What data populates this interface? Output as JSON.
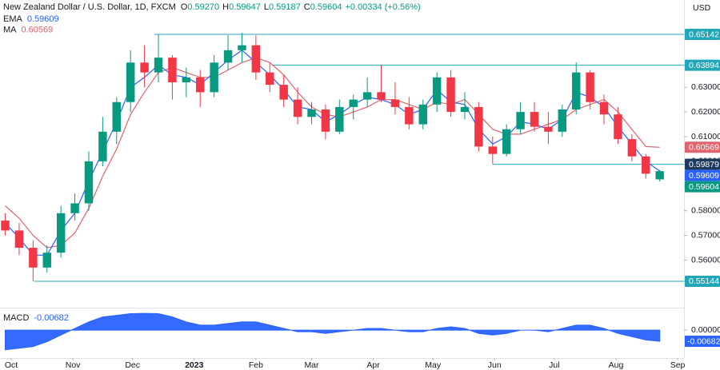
{
  "chart_data": {
    "type": "candlestick",
    "title": "New Zealand Dollar / U.S. Dollar, 1D, FXCM",
    "legend_ohlc": [
      {
        "name": "O",
        "value": 0.5927,
        "label": "0.59270"
      },
      {
        "name": "H",
        "value": 0.59647,
        "label": "0.59647"
      },
      {
        "name": "L",
        "value": 0.59187,
        "label": "0.59187"
      },
      {
        "name": "C",
        "value": 0.59604,
        "label": "0.59604"
      }
    ],
    "change": "+0.00334 (+0.56%)",
    "currency": "USD",
    "up_color": "#089981",
    "down_color": "#f23645",
    "x": [
      -3,
      4,
      11,
      18,
      25,
      32,
      39,
      46,
      53,
      60,
      67,
      74,
      81,
      88,
      95,
      102,
      109,
      116,
      123,
      130,
      137,
      144,
      151,
      158,
      165,
      172,
      179,
      186,
      193,
      200,
      207,
      214,
      221,
      228,
      235,
      242,
      249,
      256,
      263,
      270,
      277,
      284,
      291,
      298,
      305,
      312,
      319,
      326
    ],
    "open": [
      0.576,
      0.572,
      0.565,
      0.557,
      0.563,
      0.579,
      0.583,
      0.6,
      0.612,
      0.624,
      0.64,
      0.636,
      0.642,
      0.632,
      0.634,
      0.628,
      0.64,
      0.645,
      0.647,
      0.636,
      0.631,
      0.625,
      0.618,
      0.621,
      0.612,
      0.622,
      0.625,
      0.628,
      0.625,
      0.622,
      0.615,
      0.623,
      0.634,
      0.62,
      0.622,
      0.606,
      0.603,
      0.613,
      0.62,
      0.614,
      0.612,
      0.621,
      0.636,
      0.624,
      0.619,
      0.609,
      0.602,
      0.5927
    ],
    "high": [
      0.579,
      0.575,
      0.568,
      0.566,
      0.582,
      0.587,
      0.604,
      0.618,
      0.626,
      0.645,
      0.647,
      0.65142,
      0.643,
      0.638,
      0.637,
      0.643,
      0.651,
      0.652,
      0.651,
      0.64,
      0.635,
      0.63,
      0.624,
      0.623,
      0.625,
      0.627,
      0.634,
      0.63894,
      0.632,
      0.626,
      0.625,
      0.636,
      0.637,
      0.628,
      0.624,
      0.61,
      0.615,
      0.624,
      0.624,
      0.62,
      0.623,
      0.64,
      0.637,
      0.627,
      0.622,
      0.611,
      0.603,
      0.59647
    ],
    "low": [
      0.57,
      0.562,
      0.55144,
      0.555,
      0.561,
      0.576,
      0.58,
      0.598,
      0.607,
      0.62,
      0.63,
      0.632,
      0.625,
      0.626,
      0.622,
      0.626,
      0.637,
      0.64,
      0.633,
      0.628,
      0.622,
      0.615,
      0.615,
      0.609,
      0.611,
      0.617,
      0.622,
      0.624,
      0.619,
      0.613,
      0.613,
      0.62,
      0.618,
      0.617,
      0.604,
      0.599,
      0.602,
      0.611,
      0.612,
      0.607,
      0.61,
      0.619,
      0.621,
      0.615,
      0.607,
      0.6,
      0.593,
      0.59187
    ],
    "close": [
      0.572,
      0.565,
      0.557,
      0.563,
      0.579,
      0.583,
      0.6,
      0.612,
      0.624,
      0.64,
      0.636,
      0.642,
      0.632,
      0.634,
      0.628,
      0.64,
      0.645,
      0.647,
      0.636,
      0.631,
      0.625,
      0.618,
      0.621,
      0.612,
      0.622,
      0.625,
      0.628,
      0.625,
      0.622,
      0.615,
      0.623,
      0.634,
      0.62,
      0.622,
      0.606,
      0.603,
      0.613,
      0.62,
      0.614,
      0.612,
      0.621,
      0.636,
      0.624,
      0.619,
      0.609,
      0.602,
      0.595,
      0.59604
    ],
    "series": [
      {
        "name": "EMA",
        "color": "#2962ff",
        "values": [
          0.575,
          0.569,
          0.562,
          0.562,
          0.572,
          0.579,
          0.592,
          0.604,
          0.616,
          0.63,
          0.634,
          0.639,
          0.635,
          0.634,
          0.631,
          0.636,
          0.641,
          0.645,
          0.64,
          0.635,
          0.629,
          0.622,
          0.621,
          0.616,
          0.619,
          0.623,
          0.626,
          0.625,
          0.623,
          0.619,
          0.621,
          0.629,
          0.624,
          0.623,
          0.613,
          0.607,
          0.61,
          0.616,
          0.615,
          0.613,
          0.617,
          0.628,
          0.626,
          0.622,
          0.614,
          0.607,
          0.6,
          0.59609
        ]
      },
      {
        "name": "MA",
        "color": "#e0656c",
        "values": [
          0.582,
          0.577,
          0.57,
          0.565,
          0.566,
          0.571,
          0.581,
          0.594,
          0.605,
          0.619,
          0.628,
          0.636,
          0.638,
          0.636,
          0.634,
          0.634,
          0.637,
          0.64,
          0.642,
          0.64,
          0.635,
          0.628,
          0.622,
          0.619,
          0.618,
          0.62,
          0.622,
          0.625,
          0.625,
          0.623,
          0.621,
          0.624,
          0.623,
          0.625,
          0.619,
          0.613,
          0.611,
          0.611,
          0.613,
          0.615,
          0.617,
          0.621,
          0.623,
          0.625,
          0.62,
          0.613,
          0.606,
          0.60569
        ]
      }
    ],
    "levels": [
      {
        "value": 0.65142,
        "from": 72,
        "color": "#22a7b8"
      },
      {
        "value": 0.63894,
        "from": 131,
        "color": "#22a7b8"
      },
      {
        "value": 0.59879,
        "from": 242,
        "color": "#22a7b8",
        "label_color": "#1e3a5f"
      },
      {
        "value": 0.55144,
        "from": 11.6,
        "color": "#22a7b8"
      }
    ],
    "xlim": [
      -5.63,
      338.2
    ],
    "xticks": [
      {
        "value": 0,
        "label": "Oct"
      },
      {
        "value": 31,
        "label": "Nov"
      },
      {
        "value": 61,
        "label": "Dec"
      },
      {
        "value": 92,
        "label": "2023"
      },
      {
        "value": 123,
        "label": "Feb"
      },
      {
        "value": 151,
        "label": "Mar"
      },
      {
        "value": 182,
        "label": "Apr"
      },
      {
        "value": 212,
        "label": "May"
      },
      {
        "value": 243,
        "label": "Jun"
      },
      {
        "value": 273,
        "label": "Jul"
      },
      {
        "value": 304,
        "label": "Aug"
      },
      {
        "value": 335,
        "label": "Sep"
      }
    ],
    "ylim": [
      0.54074,
      0.66534
    ],
    "yticks": [
      {
        "value": 0.56,
        "label": "0.56000"
      },
      {
        "value": 0.57,
        "label": "0.57000"
      },
      {
        "value": 0.58,
        "label": "0.58000"
      },
      {
        "value": 0.59,
        "label": "0.59000"
      },
      {
        "value": 0.6,
        "label": "0.60000"
      },
      {
        "value": 0.61,
        "label": "0.61000"
      },
      {
        "value": 0.62,
        "label": "0.62000"
      },
      {
        "value": 0.63,
        "label": "0.63000"
      }
    ],
    "grid": false,
    "macd": {
      "name": "MACD",
      "color": "#2962ff",
      "values": [
        -0.012,
        -0.011,
        -0.01,
        -0.007,
        -0.003,
        0.001,
        0.005,
        0.008,
        0.009,
        0.01,
        0.0102,
        0.01,
        0.008,
        0.005,
        0.003,
        0.003,
        0.004,
        0.005,
        0.005,
        0.003,
        0.001,
        -0.001,
        -0.001,
        -0.002,
        -0.001,
        0.0,
        0.001,
        0.001,
        0.0,
        -0.001,
        -0.001,
        0.001,
        0.002,
        0.001,
        -0.002,
        -0.003,
        -0.002,
        0.0,
        0.0,
        -0.001,
        0.001,
        0.003,
        0.003,
        0.001,
        -0.002,
        -0.004,
        -0.006,
        -0.00682
      ],
      "ylim": [
        -0.017,
        0.0122
      ],
      "yticks": [
        {
          "value": 0,
          "label": "0.00000"
        }
      ]
    }
  }
}
